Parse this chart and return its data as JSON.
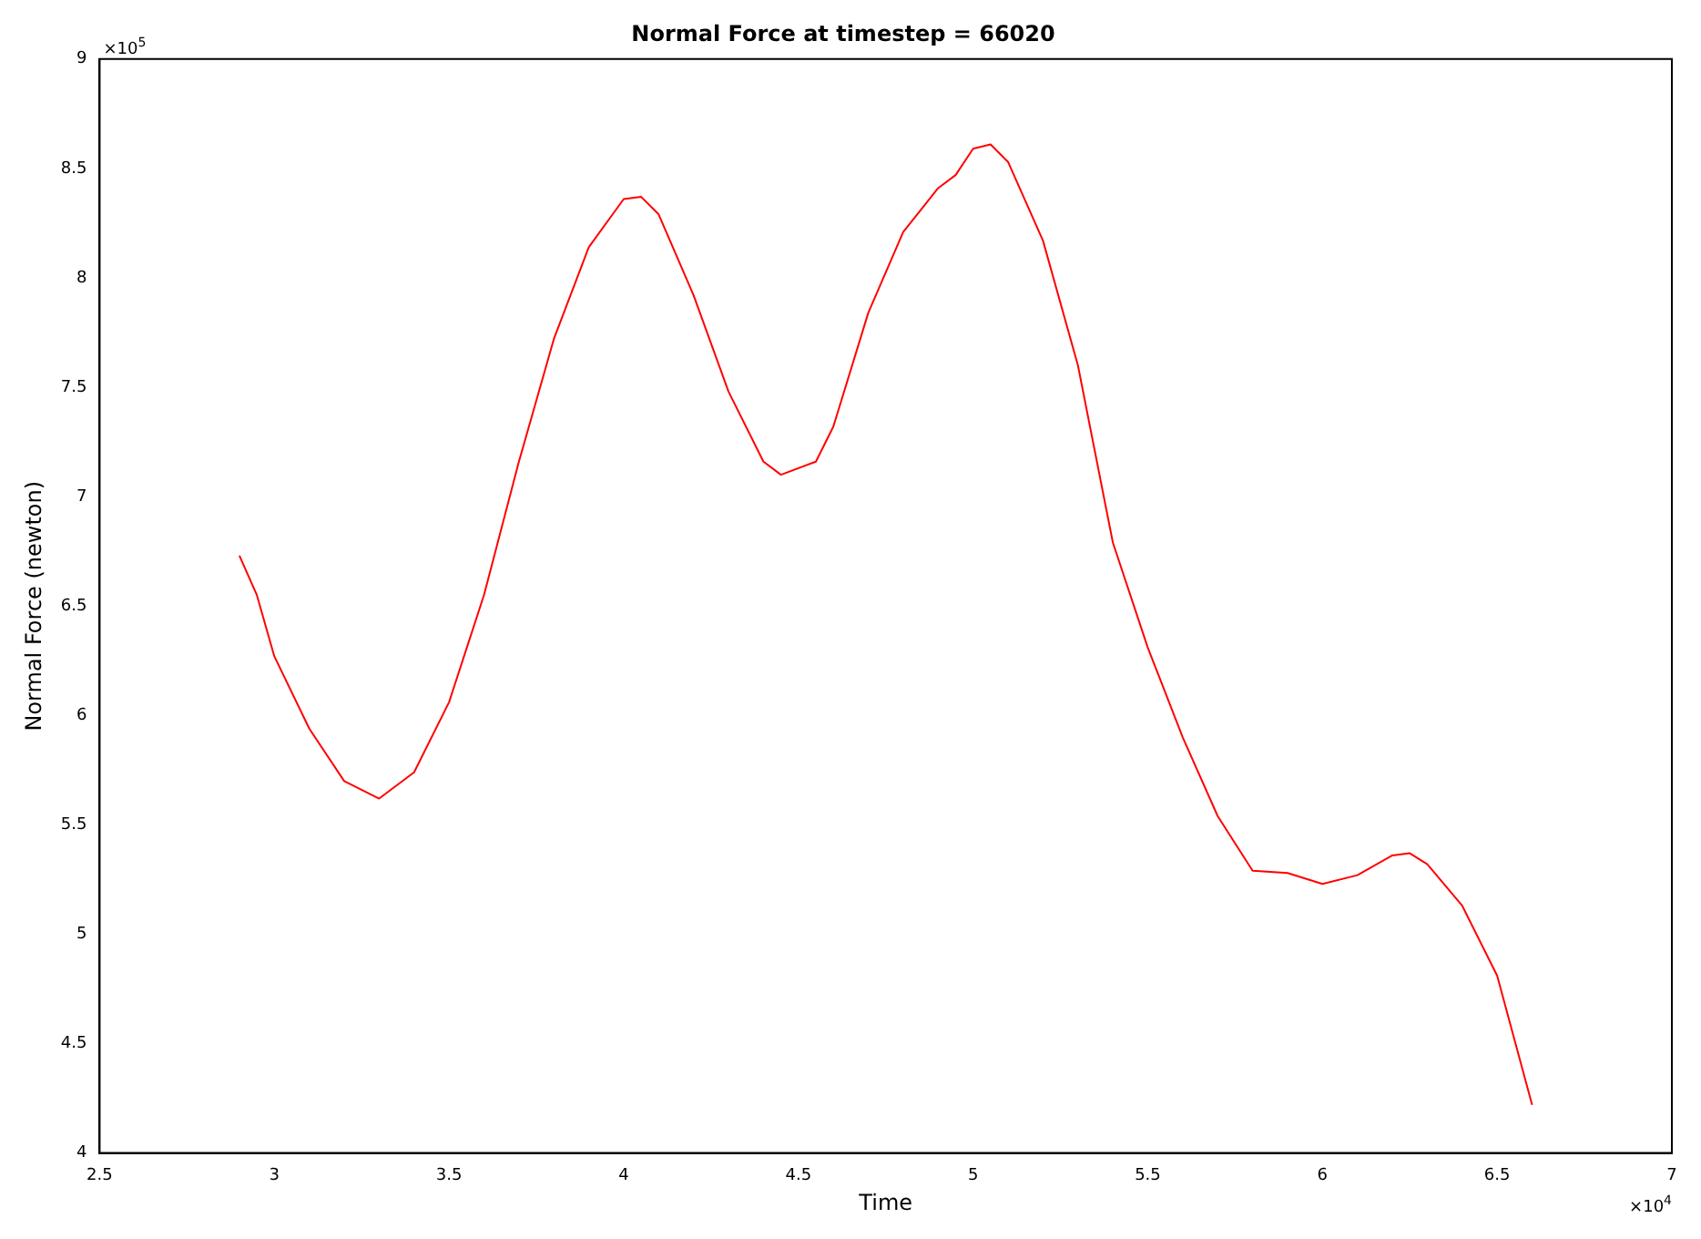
{
  "chart_data": {
    "type": "line",
    "title": "Normal Force at timestep = 66020",
    "xlabel": "Time",
    "ylabel": "Normal Force (newton)",
    "x": [
      2.9,
      2.95,
      3.0,
      3.1,
      3.2,
      3.3,
      3.4,
      3.5,
      3.6,
      3.7,
      3.8,
      3.9,
      4.0,
      4.05,
      4.1,
      4.2,
      4.3,
      4.4,
      4.45,
      4.55,
      4.6,
      4.7,
      4.8,
      4.9,
      4.95,
      5.0,
      5.05,
      5.1,
      5.2,
      5.3,
      5.4,
      5.5,
      5.6,
      5.7,
      5.8,
      5.9,
      6.0,
      6.1,
      6.2,
      6.25,
      6.3,
      6.4,
      6.5,
      6.6
    ],
    "series": [
      {
        "color": "#ff0000",
        "values": [
          6.73,
          6.55,
          6.27,
          5.94,
          5.7,
          5.62,
          5.74,
          6.06,
          6.55,
          7.16,
          7.72,
          8.14,
          8.36,
          8.37,
          8.29,
          7.92,
          7.48,
          7.16,
          7.1,
          7.16,
          7.32,
          7.84,
          8.21,
          8.41,
          8.47,
          8.59,
          8.61,
          8.53,
          8.17,
          7.6,
          6.79,
          6.31,
          5.9,
          5.54,
          5.29,
          5.28,
          5.23,
          5.27,
          5.36,
          5.37,
          5.32,
          5.13,
          4.81,
          4.22
        ]
      }
    ],
    "xlim": [
      2.5,
      7
    ],
    "xticks": [
      2.5,
      3,
      3.5,
      4,
      4.5,
      5,
      5.5,
      6,
      6.5,
      7
    ],
    "ylim": [
      4,
      9
    ],
    "yticks": [
      4,
      4.5,
      5,
      5.5,
      6,
      6.5,
      7,
      7.5,
      8,
      8.5,
      9
    ],
    "annotations": [
      "×10$^{5}$",
      "×10$^{4}$"
    ],
    "grid": false,
    "legend": false,
    "marker": "none",
    "line_style": "solid"
  }
}
